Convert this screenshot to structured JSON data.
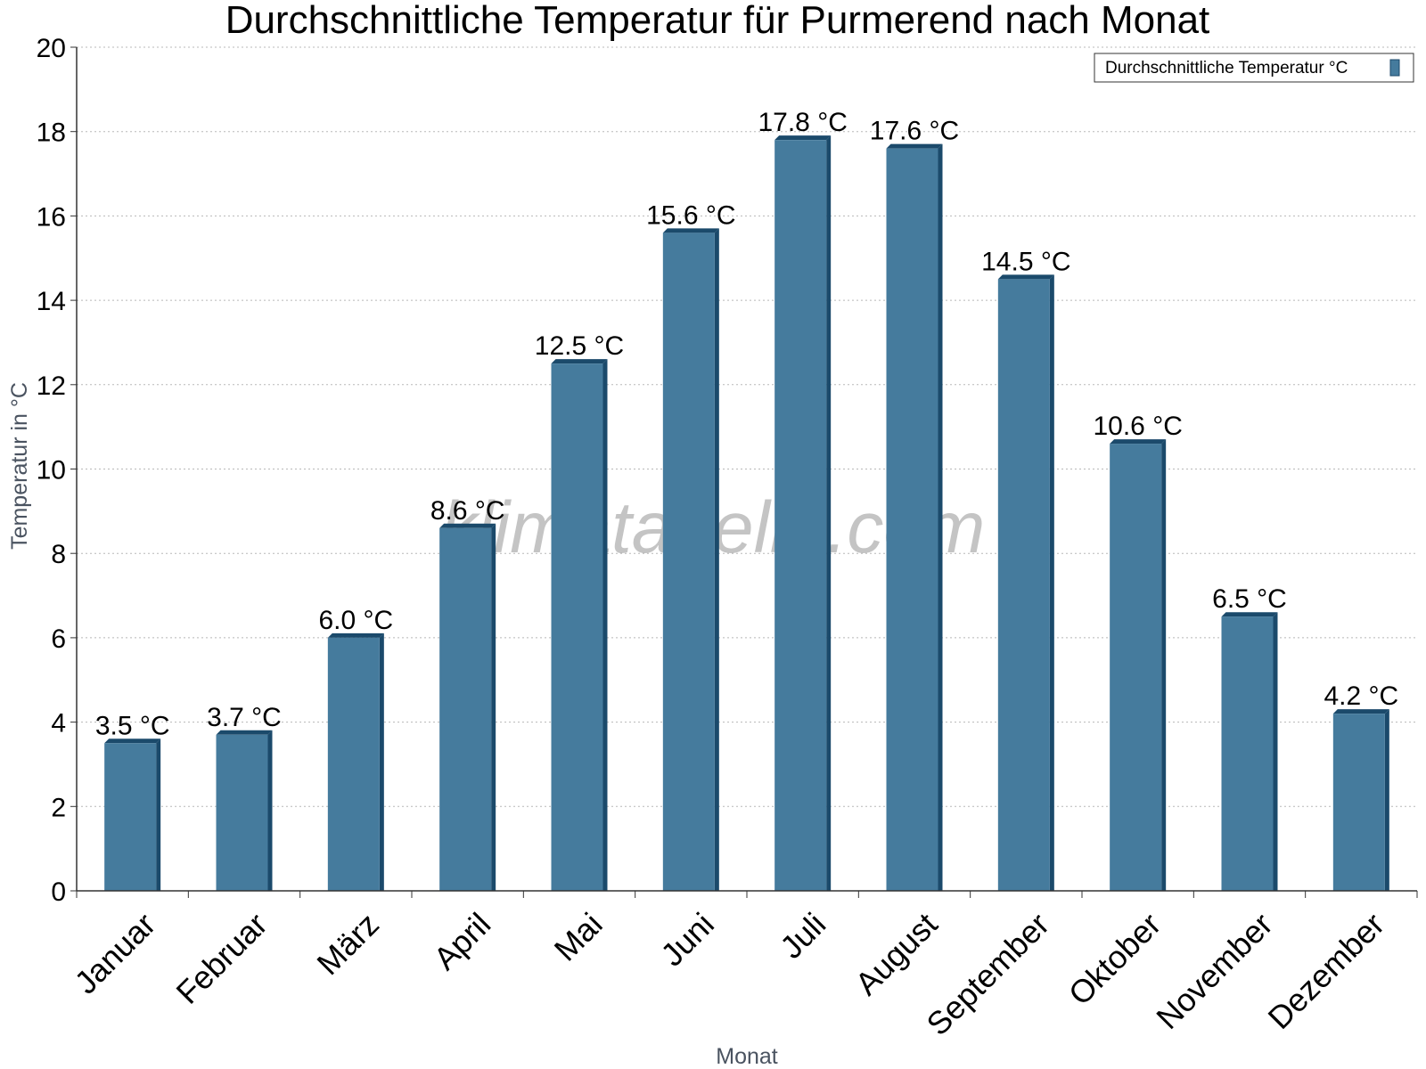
{
  "watermark": "klimatabelle.com",
  "chart_data": {
    "type": "bar",
    "title": "Durchschnittliche Temperatur für Purmerend nach Monat",
    "xlabel": "Monat",
    "ylabel": "Temperatur in °C",
    "ylim": [
      0,
      20
    ],
    "yticks": [
      0,
      2,
      4,
      6,
      8,
      10,
      12,
      14,
      16,
      18,
      20
    ],
    "grid": true,
    "legend_position": "top-right",
    "categories": [
      "Januar",
      "Februar",
      "März",
      "April",
      "Mai",
      "Juni",
      "Juli",
      "August",
      "September",
      "Oktober",
      "November",
      "Dezember"
    ],
    "series": [
      {
        "name": "Durchschnittliche Temperatur °C",
        "color": "#457b9d",
        "edge_color": "#1b4a6b",
        "values": [
          3.5,
          3.7,
          6.0,
          8.6,
          12.5,
          15.6,
          17.8,
          17.6,
          14.5,
          10.6,
          6.5,
          4.2
        ],
        "labels": [
          "3.5 °C",
          "3.7 °C",
          "6.0 °C",
          "8.6 °C",
          "12.5 °C",
          "15.6 °C",
          "17.8 °C",
          "17.6 °C",
          "14.5 °C",
          "10.6 °C",
          "6.5 °C",
          "4.2 °C"
        ]
      }
    ]
  }
}
